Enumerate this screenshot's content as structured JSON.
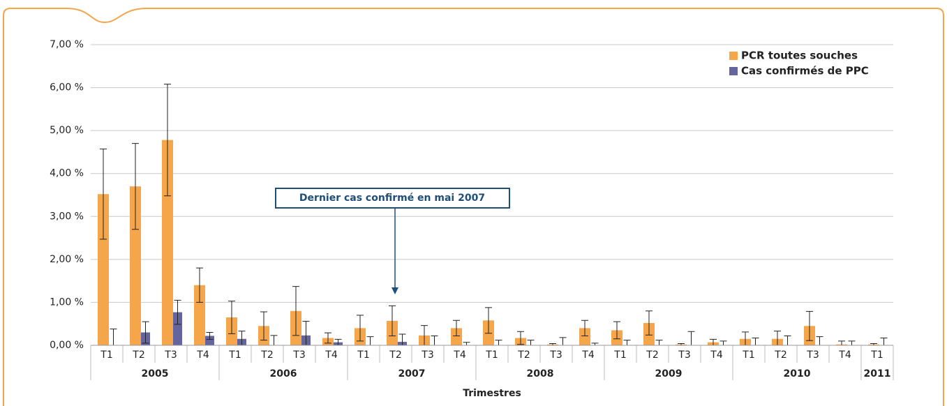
{
  "chart_data": {
    "type": "bar",
    "groups": [
      {
        "name": "2005",
        "categories": [
          "T1",
          "T2",
          "T3",
          "T4"
        ]
      },
      {
        "name": "2006",
        "categories": [
          "T1",
          "T2",
          "T3",
          "T4"
        ]
      },
      {
        "name": "2007",
        "categories": [
          "T1",
          "T2",
          "T3",
          "T4"
        ]
      },
      {
        "name": "2008",
        "categories": [
          "T1",
          "T2",
          "T3",
          "T4"
        ]
      },
      {
        "name": "2009",
        "categories": [
          "T1",
          "T2",
          "T3",
          "T4"
        ]
      },
      {
        "name": "2010",
        "categories": [
          "T1",
          "T2",
          "T3",
          "T4"
        ]
      },
      {
        "name": "2011",
        "categories": [
          "T1"
        ]
      }
    ],
    "series": [
      {
        "name": "PCR toutes souches",
        "color": "#f5a54a",
        "values": [
          3.52,
          3.7,
          4.78,
          1.4,
          0.65,
          0.45,
          0.8,
          0.17,
          0.4,
          0.57,
          0.23,
          0.4,
          0.58,
          0.17,
          0.02,
          0.4,
          0.35,
          0.52,
          0.02,
          0.07,
          0.15,
          0.15,
          0.45,
          0.02,
          0.02
        ],
        "errors": [
          1.05,
          1.0,
          1.3,
          0.4,
          0.38,
          0.33,
          0.57,
          0.12,
          0.3,
          0.35,
          0.23,
          0.18,
          0.3,
          0.15,
          0.02,
          0.18,
          0.2,
          0.28,
          0.02,
          0.07,
          0.16,
          0.18,
          0.34,
          0.08,
          0.02
        ]
      },
      {
        "name": "Cas confirmés de PPC",
        "color": "#64649e",
        "values": [
          0,
          0.3,
          0.77,
          0.22,
          0.15,
          0,
          0.23,
          0.07,
          0,
          0.08,
          0,
          0,
          0,
          0,
          0,
          0,
          0,
          0,
          0,
          0,
          0,
          0,
          0,
          0,
          0
        ],
        "errors": [
          0.38,
          0.25,
          0.28,
          0.08,
          0.18,
          0.23,
          0.33,
          0.07,
          0.2,
          0.18,
          0.22,
          0.07,
          0.12,
          0.12,
          0.18,
          0.05,
          0.12,
          0.12,
          0.32,
          0.1,
          0.17,
          0.22,
          0.2,
          0.1,
          0.17
        ]
      }
    ],
    "ylim": [
      0,
      7
    ],
    "yticks": [
      {
        "value": 0,
        "label": "0,00 %"
      },
      {
        "value": 1,
        "label": "1,00 %"
      },
      {
        "value": 2,
        "label": "2,00 %"
      },
      {
        "value": 3,
        "label": "3,00 %"
      },
      {
        "value": 4,
        "label": "4,00 %"
      },
      {
        "value": 5,
        "label": "5,00 %"
      },
      {
        "value": 6,
        "label": "6,00 %"
      },
      {
        "value": 7,
        "label": "7,00 %"
      }
    ],
    "grid": true,
    "legend": "top-right",
    "x_label": "Trimestres",
    "annotation": "Dernier cas confirmé en mai 2007"
  }
}
